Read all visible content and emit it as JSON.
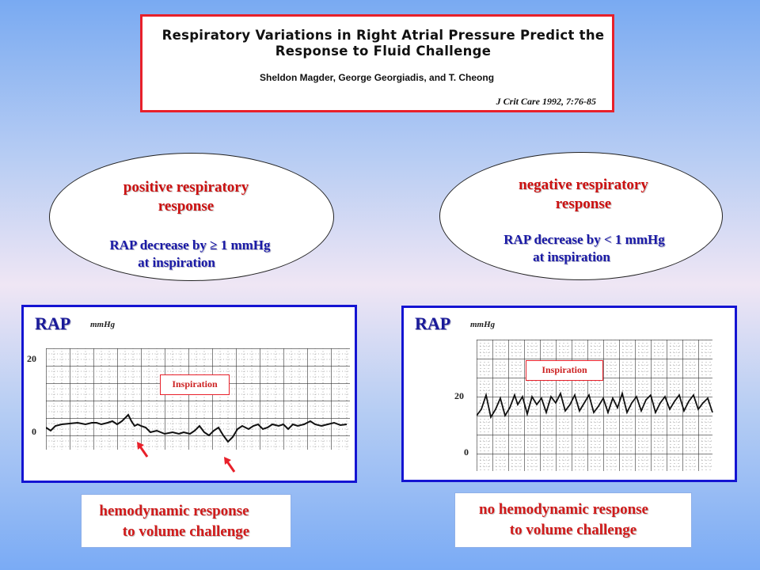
{
  "citation": {
    "title_line1": "Respiratory Variations in Right Atrial Pressure Predict the",
    "title_line2": "Response to Fluid Challenge",
    "authors": "Sheldon Magder, George Georgiadis, and T. Cheong",
    "journal": "J Crit Care 1992, 7:76-85"
  },
  "left": {
    "ellipse_title_line1": "positive respiratory",
    "ellipse_title_line2": "response",
    "ellipse_sub_line1": "RAP decrease by ≥ 1 mmHg",
    "ellipse_sub_line2": "at inspiration",
    "panel": {
      "label": "RAP",
      "unit": "mmHg",
      "tick_top": "20",
      "tick_bottom": "0",
      "marker": "Inspiration"
    },
    "response_line1": "hemodynamic response",
    "response_line2": "to volume challenge"
  },
  "right": {
    "ellipse_title_line1": "negative respiratory",
    "ellipse_title_line2": "response",
    "ellipse_sub_line1": "RAP decrease by < 1 mmHg",
    "ellipse_sub_line2": "at inspiration",
    "panel": {
      "label": "RAP",
      "unit": "mmHg",
      "tick_top": "20",
      "tick_bottom": "0",
      "marker": "Inspiration"
    },
    "response_line1": "no hemodynamic response",
    "response_line2": "to volume challenge"
  },
  "colors": {
    "red_text": "#cc1111",
    "blue_text": "#1a1aa6",
    "panel_border": "#1414d2",
    "citation_border": "#e8202a"
  }
}
